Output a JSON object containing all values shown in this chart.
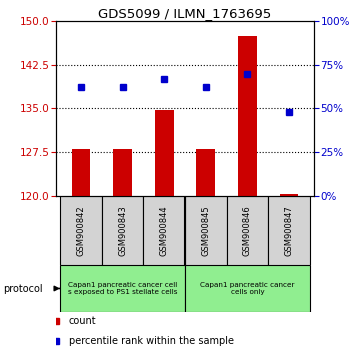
{
  "title": "GDS5099 / ILMN_1763695",
  "samples": [
    "GSM900842",
    "GSM900843",
    "GSM900844",
    "GSM900845",
    "GSM900846",
    "GSM900847"
  ],
  "counts": [
    128.0,
    128.0,
    134.8,
    128.0,
    147.5,
    120.3
  ],
  "percentile_ranks": [
    62,
    62,
    67,
    62,
    70,
    48
  ],
  "y_min": 120,
  "y_max": 150,
  "y_ticks": [
    120,
    127.5,
    135,
    142.5,
    150
  ],
  "y2_ticks": [
    0,
    25,
    50,
    75,
    100
  ],
  "bar_color": "#cc0000",
  "dot_color": "#0000cc",
  "protocol_group1_label": "Capan1 pancreatic cancer cell\ns exposed to PS1 stellate cells",
  "protocol_group2_label": "Capan1 pancreatic cancer\ncells only",
  "protocol_color": "#90ee90",
  "sample_bg_color": "#d3d3d3",
  "tick_label_color_left": "#cc0000",
  "tick_label_color_right": "#0000cc"
}
